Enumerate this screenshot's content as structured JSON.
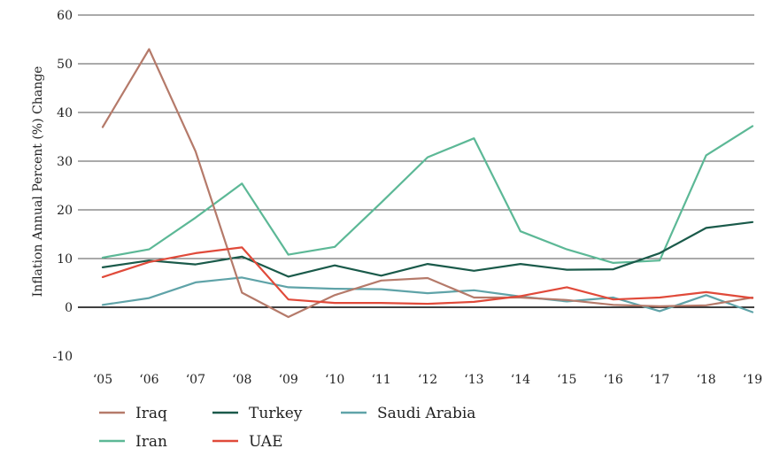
{
  "chart_data": {
    "type": "line",
    "title": "",
    "xlabel": "",
    "ylabel": "Inflation Annual Percent (%) Change",
    "categories": [
      "‘05",
      "‘06",
      "‘07",
      "‘08",
      "‘09",
      "‘10",
      "‘11",
      "‘12",
      "‘13",
      "‘14",
      "‘15",
      "‘16",
      "‘17",
      "‘18",
      "‘19"
    ],
    "ylim": [
      -10,
      60
    ],
    "yticks": [
      -10,
      0,
      10,
      20,
      30,
      40,
      50,
      60
    ],
    "grid": true,
    "legend_position": "bottom-left",
    "series": [
      {
        "name": "Iraq",
        "color": "#b57a6a",
        "values": [
          37,
          53,
          32,
          3,
          -2,
          2.5,
          5.5,
          6,
          2,
          2,
          1.5,
          0.5,
          0.2,
          0.4,
          2
        ]
      },
      {
        "name": "Turkey",
        "color": "#1a5a4a",
        "values": [
          8.2,
          9.6,
          8.8,
          10.4,
          6.3,
          8.6,
          6.5,
          8.9,
          7.5,
          8.9,
          7.7,
          7.8,
          11.1,
          16.3,
          17.5
        ]
      },
      {
        "name": "Saudi Arabia",
        "color": "#5fa3a8",
        "values": [
          0.5,
          1.9,
          5.1,
          6.1,
          4.1,
          3.8,
          3.7,
          2.9,
          3.5,
          2.2,
          1.2,
          2,
          -0.8,
          2.5,
          -1
        ]
      },
      {
        "name": "Iran",
        "color": "#5cb896",
        "values": [
          10.2,
          11.9,
          18.4,
          25.4,
          10.8,
          12.4,
          21.5,
          30.8,
          34.7,
          15.6,
          11.9,
          9.1,
          9.6,
          31.2,
          37.2
        ]
      },
      {
        "name": "UAE",
        "color": "#e04a3a",
        "values": [
          6.2,
          9.3,
          11.1,
          12.3,
          1.6,
          0.9,
          0.9,
          0.7,
          1.1,
          2.3,
          4.1,
          1.6,
          2,
          3.1,
          1.9
        ]
      }
    ]
  }
}
